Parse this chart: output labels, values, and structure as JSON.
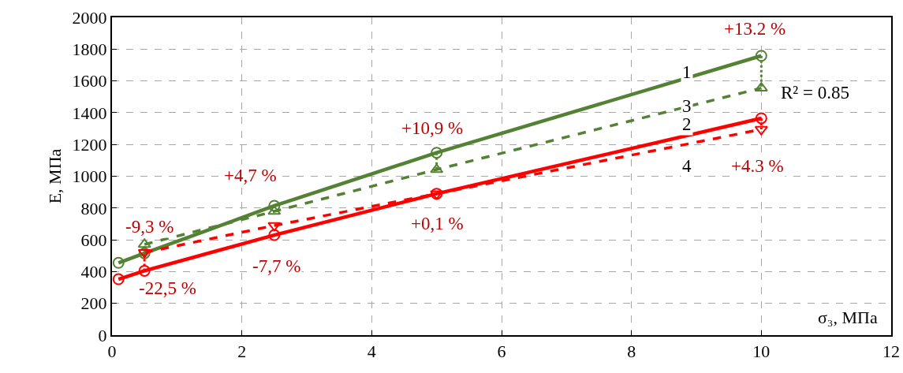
{
  "chart_data": {
    "type": "line",
    "ylabel": "E, МПа",
    "xlabel": "σ₃, МПа",
    "xlim": [
      0,
      12
    ],
    "xticks": [
      0,
      2,
      4,
      6,
      8,
      10,
      12
    ],
    "ylim": [
      0,
      2000
    ],
    "yticks": [
      0,
      200,
      400,
      600,
      800,
      1000,
      1200,
      1400,
      1600,
      1800,
      2000
    ],
    "grid": true,
    "series": [
      {
        "color": "#548235",
        "marker": "circle",
        "line_style": "solid",
        "x": [
          0.1,
          0.5,
          2.5,
          5,
          10
        ],
        "values": [
          455,
          515,
          814,
          1148,
          1758
        ]
      },
      {
        "color": "#548235",
        "marker": "triangle",
        "line_style": "dashed",
        "x": [
          0.5,
          2.5,
          5,
          10
        ],
        "values": [
          571,
          779,
          1042,
          1555
        ]
      },
      {
        "color": "#ff0000",
        "marker": "circle",
        "line_style": "solid",
        "x": [
          0.1,
          0.5,
          2.5,
          5,
          10
        ],
        "values": [
          352,
          405,
          630,
          890,
          1365
        ]
      },
      {
        "color": "#ff0000",
        "marker": "triangle-down",
        "line_style": "dashed",
        "x": [
          0.5,
          2.5,
          5,
          10
        ],
        "values": [
          520,
          690,
          890,
          1295
        ]
      },
      {
        "color": "#548235",
        "marker": "none",
        "line_style": "dotted",
        "x": [
          0.5,
          0.5,
          null,
          2.5,
          2.5,
          null,
          5,
          5,
          null,
          10,
          10
        ],
        "values": [
          515,
          571,
          null,
          814,
          779,
          null,
          1148,
          1042,
          null,
          1758,
          1555
        ]
      },
      {
        "color": "#ff0000",
        "marker": "none",
        "line_style": "dotted",
        "x": [
          0.5,
          0.5,
          null,
          10,
          10
        ],
        "values": [
          405,
          520,
          null,
          1365,
          1295
        ]
      }
    ],
    "annotations": [
      "-9,3 %",
      "-22,5 %",
      "+4,7 %",
      "-7,7 %",
      "+10,9 %",
      "+0,1 %",
      "+13.2 %",
      "+4.3 %",
      "1",
      "3",
      "2",
      "4",
      "R² = 0.85"
    ]
  }
}
